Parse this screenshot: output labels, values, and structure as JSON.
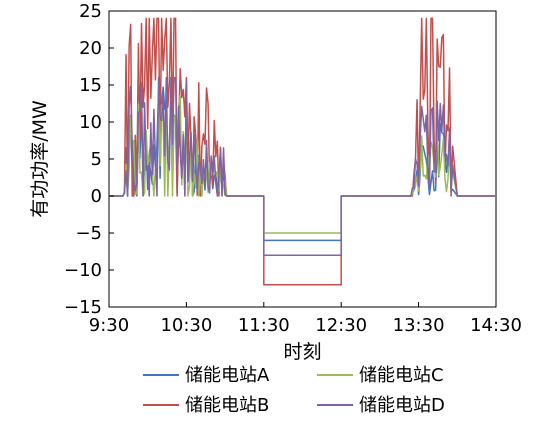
{
  "chart_data": {
    "type": "line",
    "xlabel": "时刻",
    "ylabel": "有功功率/MW",
    "xlim": [
      9.5,
      14.5
    ],
    "ylim": [
      -15,
      25
    ],
    "x_ticks": [
      9.5,
      10.5,
      11.5,
      12.5,
      13.5,
      14.5
    ],
    "x_tick_labels": [
      "9:30",
      "10:30",
      "11:30",
      "12:30",
      "13:30",
      "14:30"
    ],
    "y_ticks": [
      -15,
      -10,
      -5,
      0,
      5,
      10,
      15,
      20,
      25
    ],
    "y_tick_labels": [
      "−15",
      "−10",
      "−5",
      "0",
      "5",
      "10",
      "15",
      "20",
      "25"
    ],
    "grid": false,
    "legend_position": "bottom",
    "legend": {
      "a": "储能电站A",
      "b": "储能电站B",
      "c": "储能电站C",
      "d": "储能电站D"
    },
    "series": [
      {
        "name": "储能电站A",
        "color": "#4472c4",
        "x": [
          9.5,
          9.68,
          9.7,
          9.72,
          9.74,
          9.76,
          9.78,
          9.8,
          9.82,
          9.84,
          9.86,
          9.88,
          9.9,
          9.92,
          9.94,
          9.96,
          9.98,
          10.0,
          10.02,
          10.04,
          10.06,
          10.08,
          10.1,
          10.12,
          10.14,
          10.16,
          10.18,
          10.2,
          10.22,
          10.24,
          10.26,
          10.28,
          10.3,
          10.32,
          10.34,
          10.36,
          10.38,
          10.4,
          10.42,
          10.44,
          10.46,
          10.48,
          10.5,
          10.52,
          10.54,
          10.56,
          10.58,
          10.6,
          10.62,
          10.64,
          10.66,
          10.68,
          10.7,
          10.72,
          10.74,
          10.76,
          10.78,
          10.8,
          10.82,
          10.84,
          10.86,
          10.88,
          10.9,
          10.92,
          10.94,
          10.96,
          10.98,
          11.0,
          11.02,
          11.5,
          11.5,
          12.5,
          12.5,
          13.4,
          13.42,
          13.44,
          13.46,
          13.48,
          13.5,
          13.52,
          13.54,
          13.56,
          13.58,
          13.6,
          13.62,
          13.64,
          13.66,
          13.68,
          13.7,
          13.72,
          13.74,
          13.76,
          13.78,
          13.8,
          13.82,
          13.84,
          13.86,
          13.88,
          13.9,
          13.92,
          13.94,
          14.0,
          14.5
        ],
        "y": [
          0,
          0,
          0.5,
          6.5,
          0.0,
          7.4,
          10.9,
          3.6,
          0.2,
          4.3,
          0.0,
          9.3,
          5.1,
          11.3,
          2.4,
          3.4,
          7.0,
          0.9,
          4.5,
          3.2,
          1.6,
          6.9,
          3.9,
          6.9,
          14.1,
          2.4,
          12.4,
          14.7,
          11.7,
          11.8,
          3.2,
          6.8,
          14.5,
          1.5,
          11.0,
          10.5,
          0.4,
          8.6,
          6.4,
          2.4,
          7.1,
          4.2,
          11.1,
          2.0,
          2.9,
          6.9,
          0.0,
          0.6,
          6.1,
          1.8,
          5.5,
          2.2,
          0.1,
          3.9,
          0.8,
          4.7,
          2.5,
          1.7,
          3.7,
          1.0,
          2.6,
          3.2,
          0.6,
          1.0,
          4.8,
          1.1,
          3.8,
          0.1,
          0,
          0,
          -6,
          -6,
          0,
          0,
          0.4,
          0.8,
          1.5,
          3.5,
          0.2,
          2.9,
          6.9,
          6.7,
          5.7,
          4.8,
          2.6,
          0.2,
          1.8,
          3.4,
          0.7,
          0.8,
          7.1,
          2.6,
          9.8,
          8.6,
          8.4,
          6.9,
          3.2,
          4.4,
          7.2,
          0.6,
          0.9,
          0,
          0
        ]
      },
      {
        "name": "储能电站B",
        "color": "#c0504d",
        "x": [
          9.5,
          9.68,
          9.7,
          9.72,
          9.74,
          9.76,
          9.78,
          9.8,
          9.82,
          9.84,
          9.86,
          9.88,
          9.9,
          9.92,
          9.94,
          9.96,
          9.98,
          10.0,
          10.02,
          10.04,
          10.06,
          10.08,
          10.1,
          10.12,
          10.14,
          10.16,
          10.18,
          10.2,
          10.22,
          10.24,
          10.26,
          10.28,
          10.3,
          10.32,
          10.34,
          10.36,
          10.38,
          10.4,
          10.42,
          10.44,
          10.46,
          10.48,
          10.5,
          10.52,
          10.54,
          10.56,
          10.58,
          10.6,
          10.62,
          10.64,
          10.66,
          10.68,
          10.7,
          10.72,
          10.74,
          10.76,
          10.78,
          10.8,
          10.82,
          10.84,
          10.86,
          10.88,
          10.9,
          10.92,
          10.94,
          10.96,
          10.98,
          11.0,
          11.02,
          11.5,
          11.5,
          12.5,
          12.5,
          13.4,
          13.42,
          13.44,
          13.46,
          13.48,
          13.5,
          13.52,
          13.54,
          13.56,
          13.58,
          13.6,
          13.62,
          13.64,
          13.66,
          13.68,
          13.7,
          13.72,
          13.74,
          13.76,
          13.78,
          13.8,
          13.82,
          13.84,
          13.86,
          13.88,
          13.9,
          13.92,
          13.94,
          14.0,
          14.5
        ],
        "y": [
          0,
          0,
          0.6,
          19.1,
          0.0,
          20.2,
          23.2,
          0.0,
          0.0,
          8.2,
          1.5,
          20.6,
          7.7,
          23.3,
          12.0,
          15.0,
          24.0,
          9.1,
          24.0,
          13.2,
          19.2,
          24.0,
          15.7,
          24.0,
          24.0,
          6.9,
          24.0,
          17.0,
          21.1,
          24.0,
          12.0,
          15.4,
          24.0,
          8.1,
          24.0,
          24.0,
          0.0,
          9.8,
          17.2,
          13.3,
          14.4,
          10.7,
          16.0,
          4.3,
          12.5,
          7.6,
          0.1,
          10.7,
          8.2,
          0.1,
          15.3,
          0.0,
          6.7,
          8.4,
          7.0,
          14.6,
          12.5,
          2.1,
          4.0,
          1.4,
          10.2,
          5.3,
          7.4,
          0.0,
          6.6,
          1.6,
          4.8,
          2.6,
          0,
          0,
          -12,
          -12,
          0,
          0,
          0.0,
          3.0,
          5.0,
          13.0,
          0.9,
          12.0,
          24.0,
          13.1,
          14.3,
          24.0,
          9.2,
          1.2,
          24.0,
          24.0,
          7.7,
          1.7,
          21.2,
          17.5,
          17.4,
          21.4,
          21.8,
          3.6,
          9.6,
          8.8,
          17.3,
          0.0,
          6.7,
          0,
          0
        ]
      },
      {
        "name": "储能电站C",
        "color": "#9bbb59",
        "x": [
          9.5,
          9.68,
          9.7,
          9.72,
          9.74,
          9.76,
          9.78,
          9.8,
          9.82,
          9.84,
          9.86,
          9.88,
          9.9,
          9.92,
          9.94,
          9.96,
          9.98,
          10.0,
          10.02,
          10.04,
          10.06,
          10.08,
          10.1,
          10.12,
          10.14,
          10.16,
          10.18,
          10.2,
          10.22,
          10.24,
          10.26,
          10.28,
          10.3,
          10.32,
          10.34,
          10.36,
          10.38,
          10.4,
          10.42,
          10.44,
          10.46,
          10.48,
          10.5,
          10.52,
          10.54,
          10.56,
          10.58,
          10.6,
          10.62,
          10.64,
          10.66,
          10.68,
          10.7,
          10.72,
          10.74,
          10.76,
          10.78,
          10.8,
          10.82,
          10.84,
          10.86,
          10.88,
          10.9,
          10.92,
          10.94,
          10.96,
          10.98,
          11.0,
          11.02,
          11.5,
          11.5,
          12.5,
          12.5,
          13.4,
          13.42,
          13.44,
          13.46,
          13.48,
          13.5,
          13.52,
          13.54,
          13.56,
          13.58,
          13.6,
          13.62,
          13.64,
          13.66,
          13.68,
          13.7,
          13.72,
          13.74,
          13.76,
          13.78,
          13.8,
          13.82,
          13.84,
          13.86,
          13.88,
          13.9,
          13.92,
          13.94,
          14.0,
          14.5
        ],
        "y": [
          0,
          0,
          0.5,
          4.3,
          0.1,
          3.7,
          10.8,
          6.9,
          7.5,
          0.2,
          0.4,
          12.4,
          3.1,
          3.2,
          0.0,
          0.5,
          8.9,
          4.0,
          5.9,
          7.0,
          3.2,
          0.0,
          3.9,
          1.6,
          12.7,
          4.1,
          12.3,
          9.9,
          0.0,
          14.1,
          0.0,
          6.0,
          13.1,
          0.0,
          11.0,
          10.2,
          7.4,
          12.3,
          13.6,
          1.5,
          8.7,
          0.0,
          14.1,
          0.0,
          1.3,
          6.7,
          0.0,
          3.1,
          1.1,
          7.7,
          0.0,
          3.7,
          0.0,
          4.5,
          2.6,
          3.7,
          0.5,
          4.5,
          2.8,
          3.9,
          3.8,
          2.5,
          3.3,
          0.7,
          4.5,
          0.0,
          1.7,
          2.2,
          0,
          0,
          -5,
          -5,
          0,
          0,
          0.3,
          1.1,
          1.5,
          2.7,
          0.7,
          3.7,
          8.1,
          2.7,
          2.8,
          2.3,
          5.5,
          3.9,
          7.3,
          6.5,
          4.2,
          2.6,
          11.1,
          2.8,
          3.9,
          5.6,
          7.7,
          2.4,
          0.6,
          2.3,
          7.7,
          1.0,
          3.3,
          0,
          0
        ]
      },
      {
        "name": "储能电站D",
        "color": "#8064a2",
        "x": [
          9.5,
          9.68,
          9.7,
          9.72,
          9.74,
          9.76,
          9.78,
          9.8,
          9.82,
          9.84,
          9.86,
          9.88,
          9.9,
          9.92,
          9.94,
          9.96,
          9.98,
          10.0,
          10.02,
          10.04,
          10.06,
          10.08,
          10.1,
          10.12,
          10.14,
          10.16,
          10.18,
          10.2,
          10.22,
          10.24,
          10.26,
          10.28,
          10.3,
          10.32,
          10.34,
          10.36,
          10.38,
          10.4,
          10.42,
          10.44,
          10.46,
          10.48,
          10.5,
          10.52,
          10.54,
          10.56,
          10.58,
          10.6,
          10.62,
          10.64,
          10.66,
          10.68,
          10.7,
          10.72,
          10.74,
          10.76,
          10.78,
          10.8,
          10.82,
          10.84,
          10.86,
          10.88,
          10.9,
          10.92,
          10.94,
          10.96,
          10.98,
          11.0,
          11.02,
          11.5,
          11.5,
          12.5,
          12.5,
          13.4,
          13.42,
          13.44,
          13.46,
          13.48,
          13.5,
          13.52,
          13.54,
          13.56,
          13.58,
          13.6,
          13.62,
          13.64,
          13.66,
          13.68,
          13.7,
          13.72,
          13.74,
          13.76,
          13.78,
          13.8,
          13.82,
          13.84,
          13.86,
          13.88,
          13.9,
          13.92,
          13.94,
          14.0,
          14.5
        ],
        "y": [
          0,
          0,
          0.4,
          3.4,
          0.0,
          12.1,
          14.8,
          6.9,
          2.1,
          0.7,
          1.7,
          11.3,
          11.5,
          15.3,
          0.0,
          12.6,
          3.5,
          4.1,
          0.0,
          9.9,
          2.9,
          11.7,
          5.0,
          0.0,
          16.0,
          10.8,
          10.2,
          13.4,
          5.4,
          16.0,
          4.8,
          3.5,
          16.0,
          7.0,
          16.0,
          16.0,
          4.0,
          12.1,
          6.3,
          2.4,
          8.3,
          0.0,
          15.6,
          1.9,
          5.3,
          8.6,
          2.0,
          8.4,
          4.1,
          0.8,
          4.5,
          3.9,
          1.7,
          4.9,
          1.2,
          7.5,
          1.5,
          0.4,
          5.4,
          3.1,
          5.4,
          1.7,
          0.0,
          2.8,
          6.4,
          0.0,
          6.5,
          0.2,
          0,
          0,
          -8,
          -8,
          0,
          0,
          1.1,
          1.1,
          5.0,
          4.3,
          1.3,
          7.8,
          12.1,
          10.4,
          8.7,
          10.9,
          3.5,
          1.1,
          11.5,
          11.9,
          3.3,
          3.2,
          12.8,
          7.5,
          12.5,
          8.8,
          12.3,
          5.4,
          5.6,
          4.1,
          9.2,
          1.0,
          4.1,
          0,
          0
        ]
      }
    ]
  }
}
